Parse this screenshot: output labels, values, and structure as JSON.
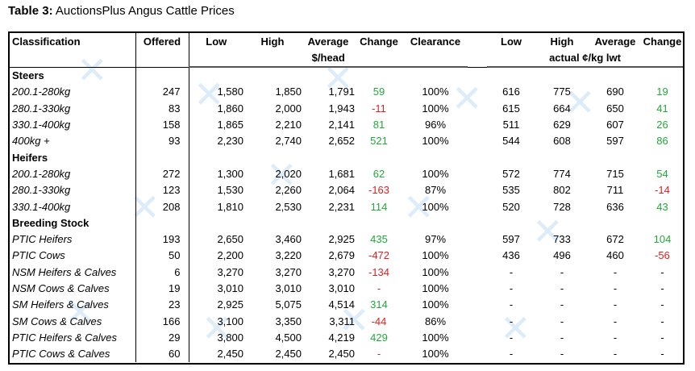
{
  "title": {
    "prefix": "Table 3:",
    "text": "AuctionsPlus Angus Cattle Prices"
  },
  "headers": {
    "classification": "Classification",
    "offered": "Offered",
    "low": "Low",
    "high": "High",
    "average": "Average",
    "change": "Change",
    "clearance": "Clearance",
    "low2": "Low",
    "high2": "High",
    "average2": "Average",
    "change2": "Change",
    "unit_head": "$/head",
    "unit_kg": "actual ¢/kg lwt"
  },
  "sections": {
    "steers": "Steers",
    "heifers": "Heifers",
    "breeding": "Breeding Stock"
  },
  "rows": [
    {
      "name": "200.1-280kg",
      "offered": "247",
      "low": "1,580",
      "high": "1,850",
      "avg": "1,791",
      "change": "59",
      "clear": "100%",
      "low2": "616",
      "high2": "775",
      "avg2": "690",
      "change2": "19"
    },
    {
      "name": "280.1-330kg",
      "offered": "83",
      "low": "1,860",
      "high": "2,000",
      "avg": "1,943",
      "change": "-11",
      "clear": "100%",
      "low2": "615",
      "high2": "664",
      "avg2": "650",
      "change2": "41"
    },
    {
      "name": "330.1-400kg",
      "offered": "158",
      "low": "1,865",
      "high": "2,210",
      "avg": "2,141",
      "change": "81",
      "clear": "96%",
      "low2": "511",
      "high2": "629",
      "avg2": "607",
      "change2": "26"
    },
    {
      "name": "400kg +",
      "offered": "93",
      "low": "2,230",
      "high": "2,740",
      "avg": "2,652",
      "change": "521",
      "clear": "100%",
      "low2": "544",
      "high2": "608",
      "avg2": "597",
      "change2": "86"
    },
    {
      "name": "200.1-280kg",
      "offered": "272",
      "low": "1,300",
      "high": "2,020",
      "avg": "1,681",
      "change": "62",
      "clear": "100%",
      "low2": "572",
      "high2": "774",
      "avg2": "715",
      "change2": "54"
    },
    {
      "name": "280.1-330kg",
      "offered": "123",
      "low": "1,530",
      "high": "2,260",
      "avg": "2,064",
      "change": "-163",
      "clear": "87%",
      "low2": "535",
      "high2": "802",
      "avg2": "711",
      "change2": "-14"
    },
    {
      "name": "330.1-400kg",
      "offered": "208",
      "low": "1,810",
      "high": "2,530",
      "avg": "2,231",
      "change": "114",
      "clear": "100%",
      "low2": "520",
      "high2": "728",
      "avg2": "636",
      "change2": "43"
    },
    {
      "name": "PTIC Heifers",
      "offered": "193",
      "low": "2,650",
      "high": "3,460",
      "avg": "2,925",
      "change": "435",
      "clear": "97%",
      "low2": "597",
      "high2": "733",
      "avg2": "672",
      "change2": "104"
    },
    {
      "name": "PTIC Cows",
      "offered": "50",
      "low": "2,200",
      "high": "3,220",
      "avg": "2,679",
      "change": "-472",
      "clear": "100%",
      "low2": "436",
      "high2": "496",
      "avg2": "460",
      "change2": "-56"
    },
    {
      "name": "NSM Heifers & Calves",
      "offered": "6",
      "low": "3,270",
      "high": "3,270",
      "avg": "3,270",
      "change": "-134",
      "clear": "100%",
      "low2": "-",
      "high2": "-",
      "avg2": "-",
      "change2": "-"
    },
    {
      "name": "NSM Cows & Calves",
      "offered": "19",
      "low": "3,010",
      "high": "3,010",
      "avg": "3,010",
      "change": "-",
      "clear": "100%",
      "low2": "-",
      "high2": "-",
      "avg2": "-",
      "change2": "-"
    },
    {
      "name": "SM Heifers & Calves",
      "offered": "23",
      "low": "2,925",
      "high": "5,075",
      "avg": "4,514",
      "change": "314",
      "clear": "100%",
      "low2": "-",
      "high2": "-",
      "avg2": "-",
      "change2": "-"
    },
    {
      "name": "SM Cows & Calves",
      "offered": "166",
      "low": "3,100",
      "high": "3,350",
      "avg": "3,311",
      "change": "-44",
      "clear": "86%",
      "low2": "-",
      "high2": "-",
      "avg2": "-",
      "change2": "-"
    },
    {
      "name": "PTIC Heifers & Calves",
      "offered": "29",
      "low": "3,800",
      "high": "4,500",
      "avg": "4,219",
      "change": "429",
      "clear": "100%",
      "low2": "-",
      "high2": "-",
      "avg2": "-",
      "change2": "-"
    },
    {
      "name": "PTIC Cows & Calves",
      "offered": "60",
      "low": "2,450",
      "high": "2,450",
      "avg": "2,450",
      "change": "-",
      "clear": "100%",
      "low2": "-",
      "high2": "-",
      "avg2": "-",
      "change2": "-"
    }
  ]
}
